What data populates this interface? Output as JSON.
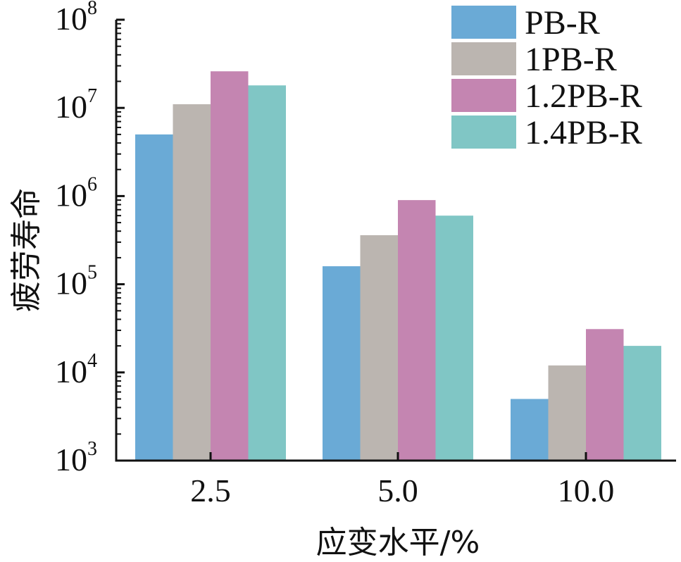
{
  "chart_data": {
    "type": "bar",
    "xlabel": "应变水平/%",
    "ylabel": "疲劳寿命",
    "yscale": "log",
    "ylim": [
      1000,
      100000000
    ],
    "ytick_labels": [
      {
        "value": 1000,
        "base": "10",
        "exp": "3"
      },
      {
        "value": 10000,
        "base": "10",
        "exp": "4"
      },
      {
        "value": 100000,
        "base": "10",
        "exp": "5"
      },
      {
        "value": 1000000,
        "base": "10",
        "exp": "6"
      },
      {
        "value": 10000000,
        "base": "10",
        "exp": "7"
      },
      {
        "value": 100000000,
        "base": "10",
        "exp": "8"
      }
    ],
    "categories": [
      "2.5",
      "5.0",
      "10.0"
    ],
    "series": [
      {
        "name": "PB-R",
        "color": "#6aaad6",
        "values": [
          5000000,
          160000,
          5000
        ]
      },
      {
        "name": "1PB-R",
        "color": "#bbb5b0",
        "values": [
          11000000,
          360000,
          12000
        ]
      },
      {
        "name": "1.2PB-R",
        "color": "#c485b1",
        "values": [
          26000000,
          900000,
          31000
        ]
      },
      {
        "name": "1.4PB-R",
        "color": "#80c6c5",
        "values": [
          18000000,
          600000,
          20000
        ]
      }
    ],
    "legend_position": "top-right",
    "grid": false
  }
}
